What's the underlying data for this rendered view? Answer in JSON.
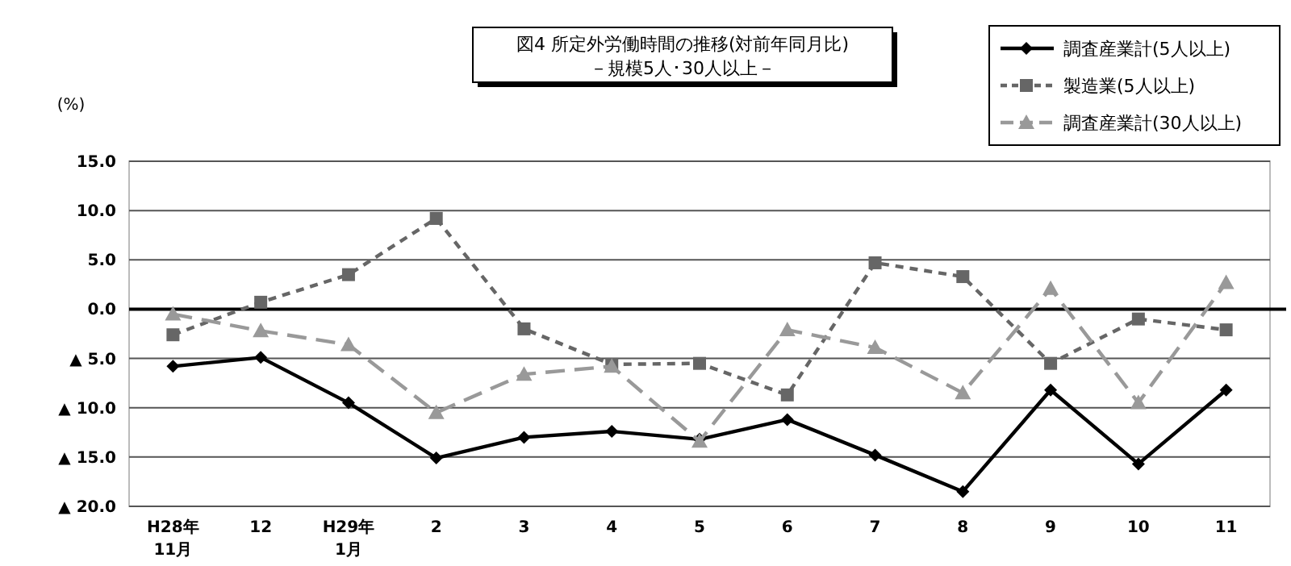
{
  "chart_data": {
    "type": "line",
    "title": "図4  所定外労働時間の推移(対前年同月比)",
    "subtitle": "－規模5人･30人以上－",
    "ylabel": "(%)",
    "categories": [
      "H28年\n11月",
      "12",
      "H29年\n1月",
      "2",
      "3",
      "4",
      "5",
      "6",
      "7",
      "8",
      "9",
      "10",
      "11"
    ],
    "series": [
      {
        "name": "調査産業計(5人以上)",
        "color": "#000000",
        "marker": "diamond",
        "line_style": "solid",
        "values": [
          -5.8,
          -4.9,
          -9.5,
          -15.1,
          -13.0,
          -12.4,
          -13.2,
          -11.2,
          -14.8,
          -18.5,
          -8.2,
          -15.7,
          -8.2
        ]
      },
      {
        "name": "製造業(5人以上)",
        "color": "#666666",
        "marker": "square",
        "line_style": "dotted",
        "values": [
          -2.6,
          0.7,
          3.5,
          9.2,
          -2.0,
          -5.6,
          -5.5,
          -8.7,
          4.7,
          3.3,
          -5.5,
          -1.0,
          -2.1
        ]
      },
      {
        "name": "調査産業計(30人以上)",
        "color": "#999999",
        "marker": "triangle",
        "line_style": "dashed",
        "values": [
          -0.5,
          -2.2,
          -3.6,
          -10.5,
          -6.6,
          -5.8,
          -13.4,
          -2.1,
          -3.9,
          -8.5,
          2.1,
          -9.5,
          2.7
        ]
      }
    ],
    "ylim": [
      -20,
      15
    ],
    "yticks": [
      {
        "value": 15,
        "label": "15.0"
      },
      {
        "value": 10,
        "label": "10.0"
      },
      {
        "value": 5,
        "label": "5.0"
      },
      {
        "value": 0,
        "label": "0.0"
      },
      {
        "value": -5,
        "label": "▲ 5.0"
      },
      {
        "value": -10,
        "label": "▲ 10.0"
      },
      {
        "value": -15,
        "label": "▲ 15.0"
      },
      {
        "value": -20,
        "label": "▲ 20.0"
      }
    ],
    "ref_lines": [
      {
        "axis": "y",
        "value": 0,
        "color": "#000000"
      }
    ],
    "grid": "y",
    "legend": "top right"
  }
}
